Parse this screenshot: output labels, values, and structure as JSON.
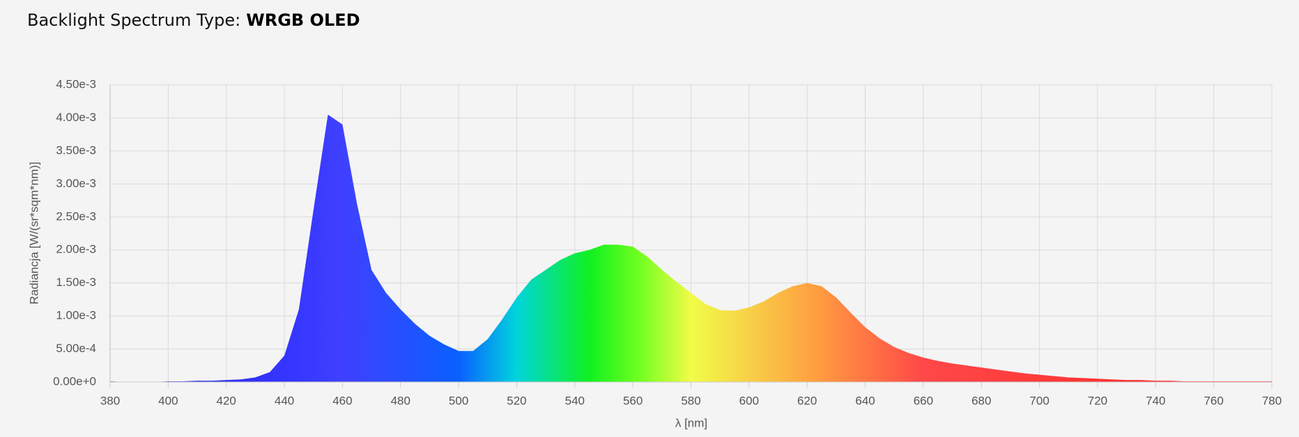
{
  "chart_data": {
    "type": "area",
    "title": "Backlight Spectrum Type:",
    "title_value": "WRGB OLED",
    "x_label": "λ [nm]",
    "y_label": "Radiancja [W/(sr*sqm*nm)]",
    "x": [
      380,
      385,
      390,
      395,
      400,
      405,
      410,
      415,
      420,
      425,
      430,
      435,
      440,
      445,
      450,
      455,
      460,
      465,
      470,
      475,
      480,
      485,
      490,
      495,
      500,
      505,
      510,
      515,
      520,
      525,
      530,
      535,
      540,
      545,
      550,
      555,
      560,
      565,
      570,
      575,
      580,
      585,
      590,
      595,
      600,
      605,
      610,
      615,
      620,
      625,
      630,
      635,
      640,
      645,
      650,
      655,
      660,
      665,
      670,
      675,
      680,
      685,
      690,
      695,
      700,
      705,
      710,
      715,
      720,
      725,
      730,
      735,
      740,
      745,
      750,
      755,
      760,
      765,
      770,
      775,
      780
    ],
    "values": [
      1e-05,
      0,
      0,
      0,
      1e-05,
      1e-05,
      2e-05,
      2e-05,
      3e-05,
      4e-05,
      7e-05,
      0.00015,
      0.0004,
      0.0011,
      0.0026,
      0.00405,
      0.0039,
      0.0027,
      0.0017,
      0.00135,
      0.0011,
      0.00088,
      0.0007,
      0.00057,
      0.00047,
      0.00047,
      0.00065,
      0.00095,
      0.00128,
      0.00155,
      0.0017,
      0.00185,
      0.00195,
      0.002,
      0.00208,
      0.00208,
      0.00205,
      0.0019,
      0.0017,
      0.00152,
      0.00135,
      0.00118,
      0.00109,
      0.00108,
      0.00113,
      0.00122,
      0.00135,
      0.00145,
      0.0015,
      0.00145,
      0.00128,
      0.00105,
      0.00083,
      0.00066,
      0.00053,
      0.00044,
      0.00037,
      0.00032,
      0.00028,
      0.00025,
      0.00022,
      0.00019,
      0.00016,
      0.00013,
      0.00011,
      9e-05,
      7e-05,
      6e-05,
      5e-05,
      4e-05,
      3e-05,
      3e-05,
      2e-05,
      2e-05,
      1e-05,
      1e-05,
      1e-05,
      1e-05,
      1e-05,
      1e-05,
      1e-05
    ],
    "fill_gradient": [
      {
        "x": 380,
        "color": "#2a2ad0"
      },
      {
        "x": 440,
        "color": "#3434ff"
      },
      {
        "x": 460,
        "color": "#4040ff"
      },
      {
        "x": 500,
        "color": "#0a60ff"
      },
      {
        "x": 520,
        "color": "#00d4dc"
      },
      {
        "x": 545,
        "color": "#10f020"
      },
      {
        "x": 562,
        "color": "#70ff20"
      },
      {
        "x": 580,
        "color": "#f0fc48"
      },
      {
        "x": 600,
        "color": "#f8d048"
      },
      {
        "x": 622,
        "color": "#ffa040"
      },
      {
        "x": 660,
        "color": "#ff4848"
      },
      {
        "x": 780,
        "color": "#ff2020"
      }
    ],
    "xlim": [
      380,
      780
    ],
    "xticks": [
      380,
      400,
      420,
      440,
      460,
      480,
      500,
      520,
      540,
      560,
      580,
      600,
      620,
      640,
      660,
      680,
      700,
      720,
      740,
      760,
      780
    ],
    "ylim": [
      0,
      0.0045
    ],
    "yticks": [
      {
        "value": 0,
        "label": "0.00e+0"
      },
      {
        "value": 0.0005,
        "label": "5.00e-4"
      },
      {
        "value": 0.001,
        "label": "1.00e-3"
      },
      {
        "value": 0.0015,
        "label": "1.50e-3"
      },
      {
        "value": 0.002,
        "label": "2.00e-3"
      },
      {
        "value": 0.0025,
        "label": "2.50e-3"
      },
      {
        "value": 0.003,
        "label": "3.00e-3"
      },
      {
        "value": 0.0035,
        "label": "3.50e-3"
      },
      {
        "value": 0.004,
        "label": "4.00e-3"
      },
      {
        "value": 0.0045,
        "label": "4.50e-3"
      }
    ],
    "grid": true
  }
}
